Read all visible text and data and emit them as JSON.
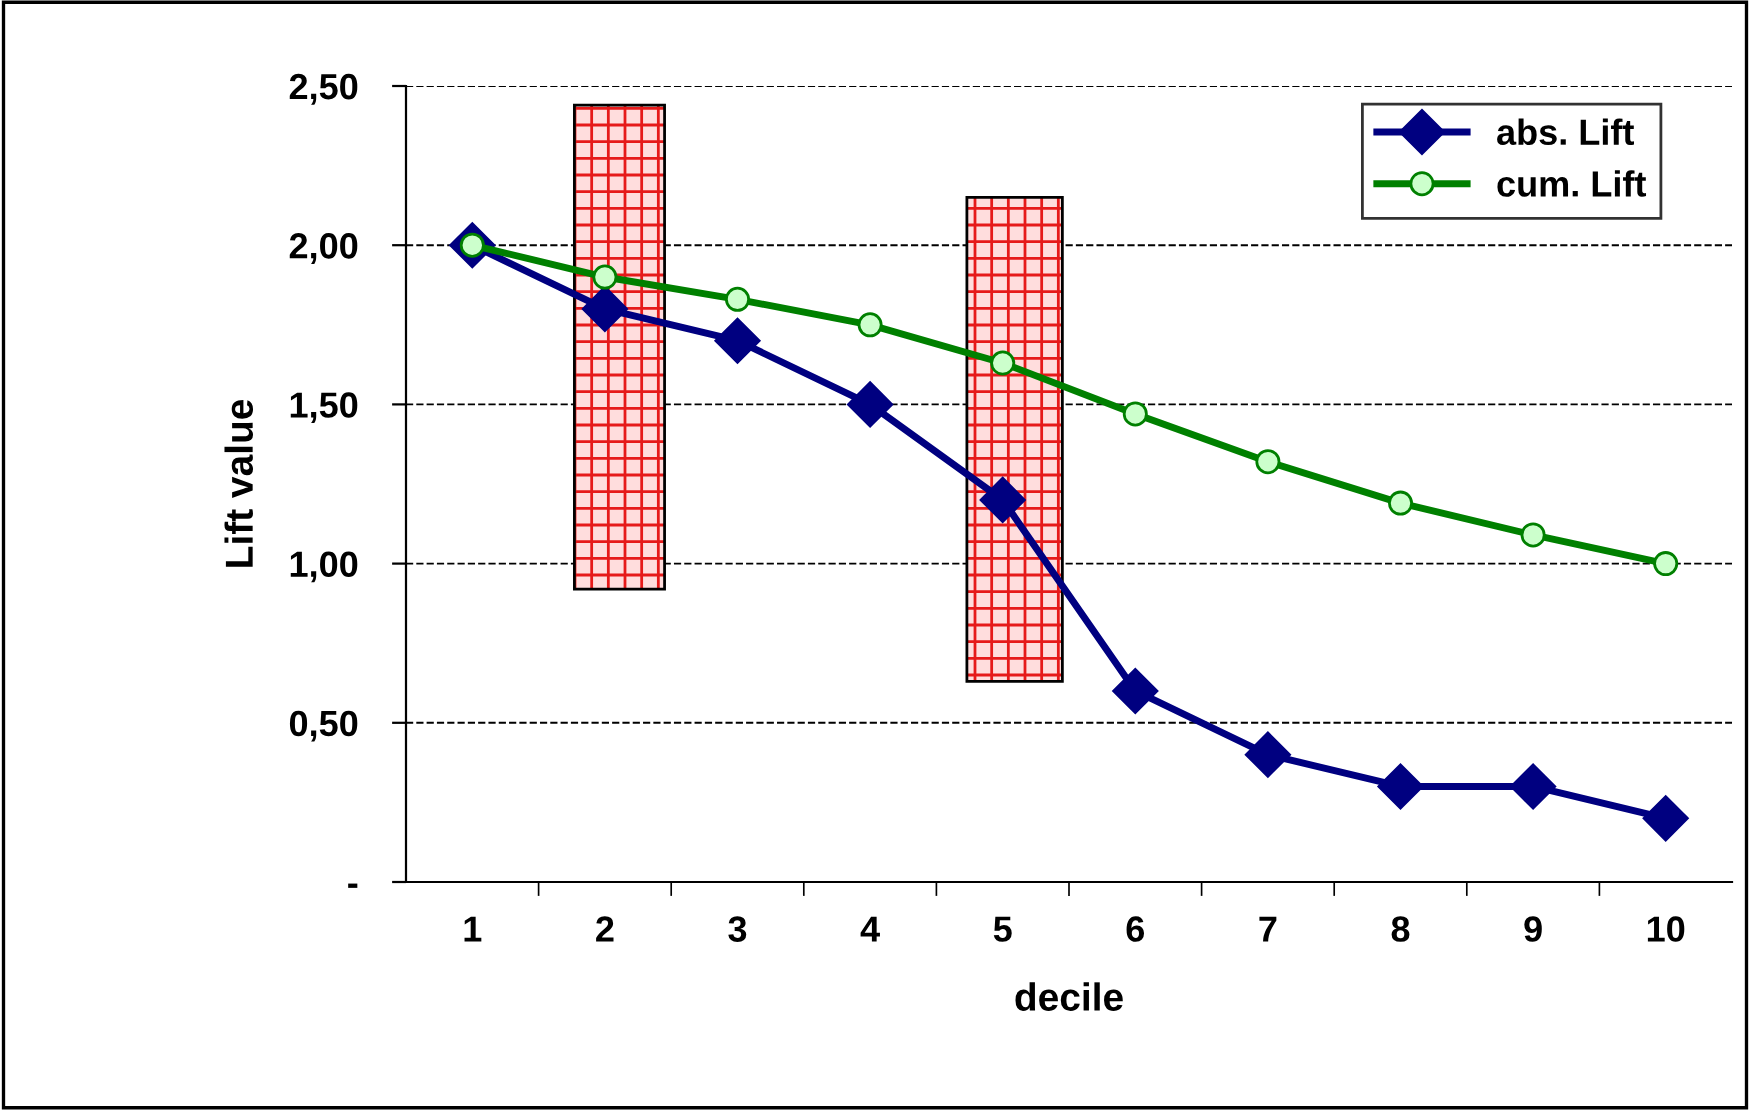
{
  "chart_data": {
    "type": "line",
    "xlabel": "decile",
    "ylabel": "Lift value",
    "categories": [
      "1",
      "2",
      "3",
      "4",
      "5",
      "6",
      "7",
      "8",
      "9",
      "10"
    ],
    "series": [
      {
        "name": "abs. Lift",
        "color": "#000080",
        "marker": "diamond",
        "values": [
          2.0,
          1.8,
          1.7,
          1.5,
          1.2,
          0.6,
          0.4,
          0.3,
          0.3,
          0.2
        ]
      },
      {
        "name": "cum. Lift",
        "color": "#008000",
        "marker": "circle",
        "values": [
          2.0,
          1.9,
          1.83,
          1.75,
          1.63,
          1.47,
          1.32,
          1.19,
          1.09,
          1.0
        ]
      }
    ],
    "ylim": [
      0,
      2.5
    ],
    "yticks": [
      {
        "value": 0,
        "label": "-"
      },
      {
        "value": 0.5,
        "label": "0,50"
      },
      {
        "value": 1.0,
        "label": "1,00"
      },
      {
        "value": 1.5,
        "label": "1,50"
      },
      {
        "value": 2.0,
        "label": "2,00"
      },
      {
        "value": 2.5,
        "label": "2,50"
      }
    ],
    "grid": "y",
    "legend": "top right",
    "line_style": "solid"
  }
}
